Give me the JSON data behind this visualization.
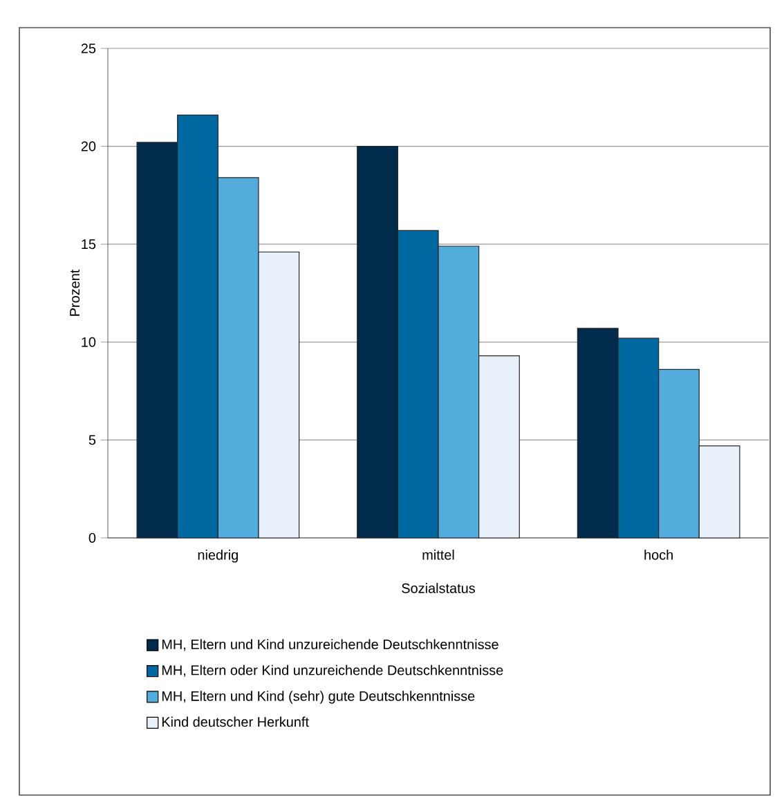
{
  "chart_data": {
    "type": "bar",
    "xlabel": "Sozialstatus",
    "ylabel": "Prozent",
    "categories": [
      "niedrig",
      "mittel",
      "hoch"
    ],
    "series": [
      {
        "name": "MH, Eltern und Kind unzureichende Deutschkenntnisse",
        "color": "#002b4a",
        "values": [
          20.2,
          20.0,
          10.7
        ]
      },
      {
        "name": "MH, Eltern oder Kind unzureichende Deutschkenntnisse",
        "color": "#0068a0",
        "values": [
          21.6,
          15.7,
          10.2
        ]
      },
      {
        "name": "MH, Eltern und Kind (sehr) gute Deutschkenntnisse",
        "color": "#52acdc",
        "values": [
          18.4,
          14.9,
          8.6
        ]
      },
      {
        "name": "Kind deutscher Herkunft",
        "color": "#e8f0fa",
        "values": [
          14.6,
          9.3,
          4.7
        ]
      }
    ],
    "ylim": [
      0,
      25
    ],
    "yticks": [
      0,
      5,
      10,
      15,
      20,
      25
    ],
    "grid": "y",
    "legend": "bottom"
  }
}
